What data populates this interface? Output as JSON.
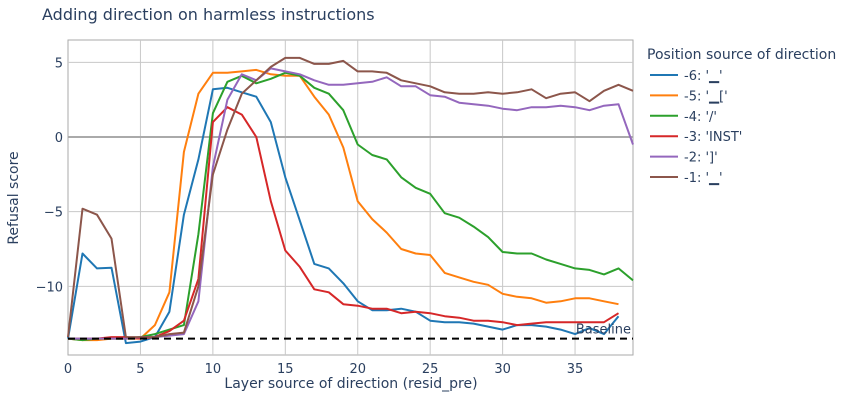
{
  "chart_data": {
    "type": "line",
    "title": "Adding direction on harmless instructions",
    "xlabel": "Layer source of direction (resid_pre)",
    "ylabel": "Refusal score",
    "xlim": [
      0,
      39
    ],
    "ylim": [
      -14.6,
      6.5
    ],
    "xticks": [
      0,
      5,
      10,
      15,
      20,
      25,
      30,
      35
    ],
    "yticks": [
      -10,
      -5,
      0,
      5
    ],
    "ytick_labels": [
      "−10",
      "−5",
      "0",
      "5"
    ],
    "grid": true,
    "legend": {
      "title": "Position source of direction",
      "placement": "right-outside"
    },
    "baseline": {
      "label": "Baseline",
      "value": -13.5,
      "style": "dashed",
      "color": "#000000"
    },
    "zero_line_color": "#aaaaaa",
    "series": [
      {
        "name": "-6: '▁'",
        "color": "#1f77b4",
        "values": [
          -13.5,
          -7.8,
          -8.8,
          -8.75,
          -13.8,
          -13.7,
          -13.4,
          -11.7,
          -5.2,
          -1.5,
          3.2,
          3.3,
          3.0,
          2.7,
          1.0,
          -2.7,
          -5.6,
          -8.5,
          -8.8,
          -9.8,
          -11.0,
          -11.6,
          -11.6,
          -11.5,
          -11.7,
          -12.3,
          -12.4,
          -12.4,
          -12.5,
          -12.7,
          -12.9,
          -12.6,
          -12.6,
          -12.7,
          -12.9,
          -13.2,
          -12.8,
          -13.2,
          -12.0
        ]
      },
      {
        "name": "-5: '▁['",
        "color": "#ff7f0e",
        "values": [
          -13.5,
          -13.6,
          -13.6,
          -13.5,
          -13.5,
          -13.5,
          -12.6,
          -10.4,
          -1.0,
          2.9,
          4.3,
          4.3,
          4.4,
          4.5,
          4.2,
          4.1,
          4.1,
          2.7,
          1.5,
          -0.7,
          -4.3,
          -5.5,
          -6.4,
          -7.5,
          -7.8,
          -7.9,
          -9.1,
          -9.4,
          -9.7,
          -9.9,
          -10.5,
          -10.7,
          -10.8,
          -11.1,
          -11.0,
          -10.8,
          -10.8,
          -11.0,
          -11.2
        ]
      },
      {
        "name": "-4: '/'",
        "color": "#2ca02c",
        "values": [
          -13.5,
          -13.6,
          -13.5,
          -13.5,
          -13.5,
          -13.4,
          -13.2,
          -12.9,
          -12.6,
          -6.5,
          1.6,
          3.7,
          4.1,
          3.6,
          3.9,
          4.3,
          4.1,
          3.3,
          2.9,
          1.8,
          -0.5,
          -1.2,
          -1.5,
          -2.7,
          -3.4,
          -3.8,
          -5.1,
          -5.4,
          -6.0,
          -6.7,
          -7.7,
          -7.8,
          -7.8,
          -8.2,
          -8.5,
          -8.8,
          -8.9,
          -9.2,
          -8.8,
          -9.6
        ]
      },
      {
        "name": "-3: 'INST'",
        "color": "#d62728",
        "values": [
          -13.5,
          -13.5,
          -13.5,
          -13.4,
          -13.4,
          -13.5,
          -13.4,
          -13.0,
          -12.3,
          -9.5,
          1.0,
          2.0,
          1.5,
          0.0,
          -4.3,
          -7.6,
          -8.7,
          -10.2,
          -10.4,
          -11.2,
          -11.3,
          -11.5,
          -11.5,
          -11.8,
          -11.7,
          -11.8,
          -12.0,
          -12.1,
          -12.3,
          -12.3,
          -12.4,
          -12.6,
          -12.5,
          -12.4,
          -12.4,
          -12.4,
          -12.4,
          -12.4,
          -11.8
        ]
      },
      {
        "name": "-2: ']'",
        "color": "#9467bd",
        "values": [
          -13.5,
          -13.5,
          -13.5,
          -13.5,
          -13.5,
          -13.4,
          -13.4,
          -13.3,
          -13.2,
          -11.0,
          -2.0,
          2.5,
          4.2,
          3.8,
          4.6,
          4.4,
          4.2,
          3.8,
          3.5,
          3.5,
          3.6,
          3.7,
          4.0,
          3.4,
          3.4,
          2.8,
          2.7,
          2.3,
          2.2,
          2.1,
          1.9,
          1.8,
          2.0,
          2.0,
          2.1,
          2.0,
          1.8,
          2.1,
          2.2,
          -0.5
        ]
      },
      {
        "name": "-1: '▁'",
        "color": "#8c564b",
        "values": [
          -13.4,
          -4.8,
          -5.2,
          -6.8,
          -13.4,
          -13.4,
          -13.4,
          -13.2,
          -13.1,
          -10.0,
          -2.5,
          0.5,
          2.9,
          3.8,
          4.7,
          5.3,
          5.3,
          4.9,
          4.9,
          5.1,
          4.4,
          4.4,
          4.3,
          3.8,
          3.6,
          3.4,
          3.0,
          2.9,
          2.9,
          3.0,
          2.9,
          3.0,
          3.2,
          2.6,
          2.9,
          3.0,
          2.4,
          3.1,
          3.5,
          3.1
        ]
      }
    ]
  }
}
